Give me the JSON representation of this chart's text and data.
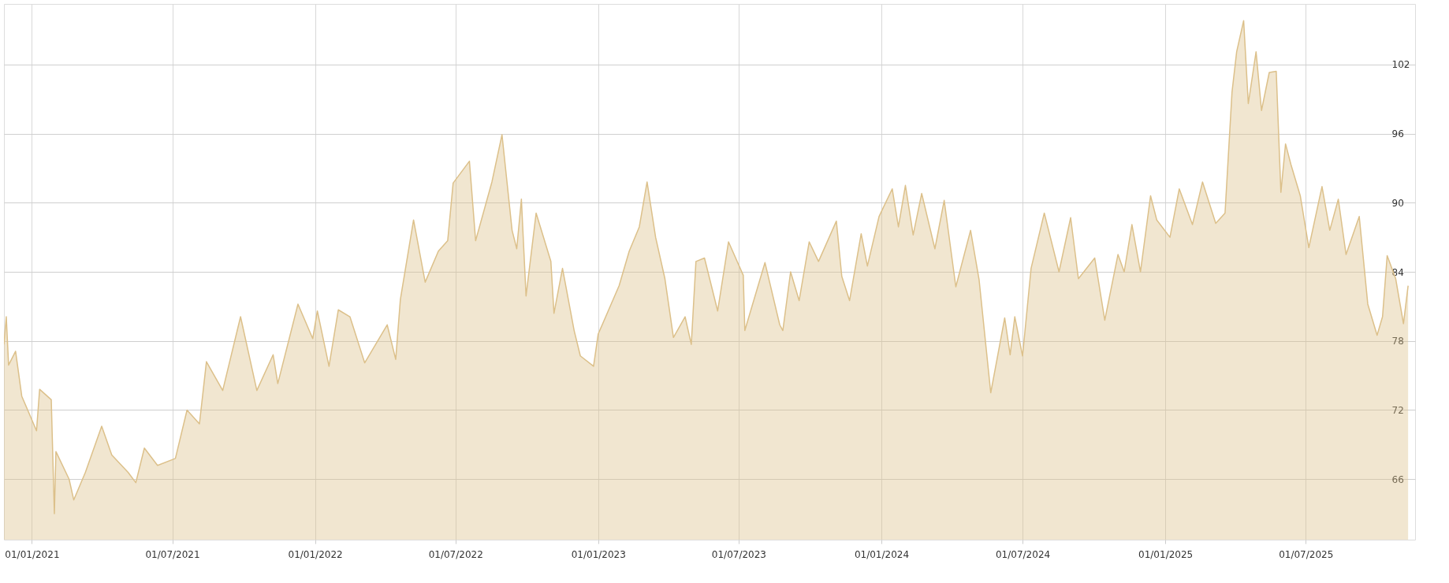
{
  "chart_data": {
    "type": "area",
    "xlim": [
      "2020-11-26",
      "2025-11-19"
    ],
    "xticks": [
      {
        "value": "2021-01-01",
        "label": "01/01/2021"
      },
      {
        "value": "2021-07-01",
        "label": "01/07/2021"
      },
      {
        "value": "2022-01-01",
        "label": "01/01/2022"
      },
      {
        "value": "2022-07-01",
        "label": "01/07/2022"
      },
      {
        "value": "2023-01-01",
        "label": "01/01/2023"
      },
      {
        "value": "2023-07-01",
        "label": "01/07/2023"
      },
      {
        "value": "2024-01-01",
        "label": "01/01/2024"
      },
      {
        "value": "2024-07-01",
        "label": "01/07/2024"
      },
      {
        "value": "2025-01-01",
        "label": "01/01/2025"
      },
      {
        "value": "2025-07-01",
        "label": "01/07/2025"
      }
    ],
    "ylim": [
      60.75,
      107.25
    ],
    "yticks": [
      66,
      72,
      78,
      84,
      90,
      96,
      102
    ],
    "grid": true,
    "series": [
      {
        "color": "#dcc08a",
        "x": [
          "2020-11-26",
          "2020-11-29",
          "2020-12-02",
          "2020-12-11",
          "2020-12-19",
          "2021-01-07",
          "2021-01-11",
          "2021-01-26",
          "2021-01-30",
          "2021-02-01",
          "2021-02-18",
          "2021-02-24",
          "2021-03-11",
          "2021-04-01",
          "2021-04-14",
          "2021-05-05",
          "2021-05-15",
          "2021-05-26",
          "2021-06-12",
          "2021-07-05",
          "2021-07-20",
          "2021-08-05",
          "2021-08-14",
          "2021-09-04",
          "2021-09-27",
          "2021-10-18",
          "2021-11-08",
          "2021-11-14",
          "2021-12-10",
          "2021-12-29",
          "2022-01-04",
          "2022-01-19",
          "2022-01-31",
          "2022-02-15",
          "2022-03-06",
          "2022-04-04",
          "2022-04-15",
          "2022-04-21",
          "2022-05-08",
          "2022-05-23",
          "2022-06-09",
          "2022-06-21",
          "2022-06-28",
          "2022-07-19",
          "2022-07-27",
          "2022-08-17",
          "2022-08-30",
          "2022-09-12",
          "2022-09-18",
          "2022-09-24",
          "2022-09-30",
          "2022-10-13",
          "2022-11-01",
          "2022-11-05",
          "2022-11-16",
          "2022-12-01",
          "2022-12-09",
          "2022-12-26",
          "2023-01-01",
          "2023-01-28",
          "2023-02-10",
          "2023-02-23",
          "2023-03-05",
          "2023-03-16",
          "2023-03-28",
          "2023-04-08",
          "2023-04-23",
          "2023-05-01",
          "2023-05-07",
          "2023-05-18",
          "2023-06-04",
          "2023-06-18",
          "2023-07-07",
          "2023-07-09",
          "2023-08-04",
          "2023-08-23",
          "2023-08-27",
          "2023-09-06",
          "2023-09-17",
          "2023-09-30",
          "2023-10-12",
          "2023-11-04",
          "2023-11-11",
          "2023-11-21",
          "2023-12-06",
          "2023-12-14",
          "2023-12-29",
          "2024-01-15",
          "2024-01-23",
          "2024-02-01",
          "2024-02-11",
          "2024-02-22",
          "2024-03-10",
          "2024-03-22",
          "2024-04-06",
          "2024-04-25",
          "2024-05-06",
          "2024-05-21",
          "2024-06-08",
          "2024-06-15",
          "2024-06-21",
          "2024-07-01",
          "2024-07-12",
          "2024-07-29",
          "2024-08-17",
          "2024-09-01",
          "2024-09-11",
          "2024-10-02",
          "2024-10-15",
          "2024-11-01",
          "2024-11-09",
          "2024-11-19",
          "2024-11-30",
          "2024-12-13",
          "2024-12-21",
          "2025-01-07",
          "2025-01-19",
          "2025-02-05",
          "2025-02-18",
          "2025-03-07",
          "2025-03-19",
          "2025-03-28",
          "2025-04-03",
          "2025-04-12",
          "2025-04-18",
          "2025-04-28",
          "2025-05-05",
          "2025-05-15",
          "2025-05-24",
          "2025-05-30",
          "2025-06-05",
          "2025-06-12",
          "2025-06-24",
          "2025-07-05",
          "2025-07-22",
          "2025-08-01",
          "2025-08-12",
          "2025-08-22",
          "2025-09-08",
          "2025-09-19",
          "2025-10-01",
          "2025-10-08",
          "2025-10-14",
          "2025-10-25",
          "2025-11-04",
          "2025-11-10"
        ],
        "values": [
          77.7,
          80.1,
          75.9,
          77.1,
          73.2,
          70.2,
          73.8,
          72.9,
          63.0,
          68.4,
          66.0,
          64.2,
          66.6,
          70.6,
          68.1,
          66.6,
          65.7,
          68.7,
          67.2,
          67.8,
          72.0,
          70.8,
          76.2,
          73.7,
          80.1,
          73.7,
          76.8,
          74.3,
          81.2,
          78.2,
          80.6,
          75.8,
          80.7,
          80.1,
          76.1,
          79.4,
          76.4,
          81.6,
          88.5,
          83.1,
          85.8,
          86.7,
          91.7,
          93.6,
          86.7,
          91.8,
          95.9,
          87.6,
          86.0,
          90.3,
          81.9,
          89.1,
          84.9,
          80.4,
          84.3,
          78.9,
          76.7,
          75.8,
          78.6,
          82.8,
          85.8,
          87.9,
          91.8,
          87.0,
          83.4,
          78.3,
          80.1,
          77.7,
          84.9,
          85.2,
          80.6,
          86.6,
          83.7,
          78.9,
          84.8,
          79.4,
          78.9,
          84.0,
          81.5,
          86.6,
          84.9,
          88.4,
          83.6,
          81.5,
          87.3,
          84.5,
          88.8,
          91.2,
          87.9,
          91.5,
          87.2,
          90.8,
          86.0,
          90.2,
          82.7,
          87.6,
          83.3,
          73.5,
          80.0,
          76.8,
          80.1,
          76.7,
          84.3,
          89.1,
          84.0,
          88.7,
          83.4,
          85.2,
          79.8,
          85.5,
          84.0,
          88.1,
          84.0,
          90.6,
          88.5,
          87.0,
          91.2,
          88.1,
          91.8,
          88.2,
          89.1,
          99.6,
          103.1,
          105.8,
          98.6,
          103.1,
          98.0,
          101.3,
          101.4,
          90.9,
          95.1,
          93.3,
          90.6,
          86.1,
          91.4,
          87.6,
          90.3,
          85.5,
          88.8,
          81.2,
          78.5,
          80.1,
          85.4,
          83.4,
          79.5,
          82.8
        ]
      }
    ]
  }
}
